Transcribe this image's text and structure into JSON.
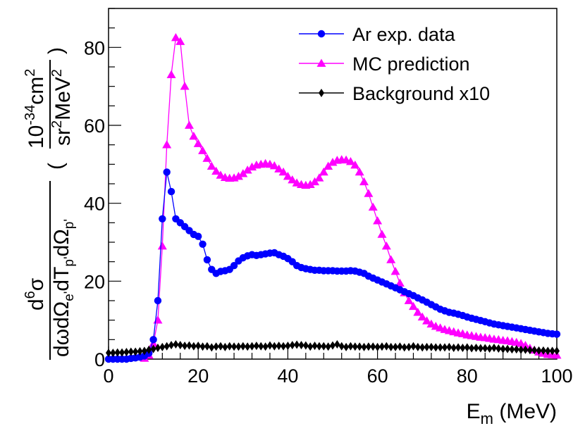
{
  "chart_data": {
    "type": "line",
    "title": "",
    "xlabel": {
      "main": "E",
      "sub": "m",
      "suffix": " (MeV)"
    },
    "ylabel": {
      "num_main": "d",
      "num_sup": "6",
      "num_sigma": "σ",
      "den_1": "dωdΩ",
      "den_sub_e": "e'",
      "den_2": "dT",
      "den_sub_p": "p'",
      "den_3": "dΩ",
      "den_sub_p2": "p'",
      "unit_ten": "10",
      "unit_exp": "-34",
      "unit_cm": "cm",
      "unit_cm_exp": "2",
      "unit_sr": "sr",
      "unit_sr_exp": "2",
      "unit_mev": "MeV",
      "unit_mev_exp": "2"
    },
    "xlim": [
      0,
      100
    ],
    "ylim": [
      0,
      90
    ],
    "x_ticks": [
      "0",
      "20",
      "40",
      "60",
      "80",
      "100"
    ],
    "y_ticks": [
      "0",
      "20",
      "40",
      "60",
      "80"
    ],
    "legend_position": "top-right",
    "series": [
      {
        "name": "Ar exp. data",
        "color": "#0000ff",
        "marker": "circle",
        "x": [
          0,
          1,
          2,
          3,
          4,
          5,
          6,
          7,
          8,
          9,
          10,
          11,
          12,
          13,
          14,
          15,
          16,
          17,
          18,
          19,
          20,
          21,
          22,
          23,
          24,
          25,
          26,
          27,
          28,
          29,
          30,
          31,
          32,
          33,
          34,
          35,
          36,
          37,
          38,
          39,
          40,
          41,
          42,
          43,
          44,
          45,
          46,
          47,
          48,
          49,
          50,
          51,
          52,
          53,
          54,
          55,
          56,
          57,
          58,
          59,
          60,
          61,
          62,
          63,
          64,
          65,
          66,
          67,
          68,
          69,
          70,
          71,
          72,
          73,
          74,
          75,
          76,
          77,
          78,
          79,
          80,
          81,
          82,
          83,
          84,
          85,
          86,
          87,
          88,
          89,
          90,
          91,
          92,
          93,
          94,
          95,
          96,
          97,
          98,
          99,
          100
        ],
        "y": [
          0,
          0,
          0,
          0,
          0,
          0.2,
          0.3,
          0.5,
          0.8,
          1.5,
          5,
          15,
          36,
          48,
          43,
          36,
          35,
          34,
          33,
          32,
          31.5,
          29.5,
          25.5,
          23,
          22,
          22.5,
          22.7,
          23,
          24,
          25.2,
          26,
          26.5,
          26.8,
          26.6,
          26.8,
          27,
          27.2,
          27.3,
          26.8,
          26.4,
          25.8,
          25,
          24,
          23.5,
          23.2,
          23,
          22.8,
          22.8,
          22.7,
          22.7,
          22.7,
          22.6,
          22.6,
          22.6,
          22.7,
          22.6,
          22.3,
          22,
          21.3,
          20.8,
          20.3,
          19.8,
          19.3,
          18.8,
          18.3,
          17.8,
          17.3,
          16.8,
          16.3,
          15.7,
          15.2,
          14.6,
          14,
          13.4,
          12.8,
          12.4,
          12,
          11.8,
          11.5,
          11.2,
          10.8,
          10.5,
          10.2,
          9.9,
          9.6,
          9.3,
          9,
          8.8,
          8.6,
          8.4,
          8.2,
          8,
          7.8,
          7.6,
          7.4,
          7.2,
          7,
          6.8,
          6.6,
          6.5,
          6.4
        ]
      },
      {
        "name": "MC prediction",
        "color": "#ff00ff",
        "marker": "triangle",
        "x": [
          8,
          9,
          10,
          11,
          12,
          13,
          14,
          15,
          16,
          17,
          18,
          19,
          20,
          21,
          22,
          23,
          24,
          25,
          26,
          27,
          28,
          29,
          30,
          31,
          32,
          33,
          34,
          35,
          36,
          37,
          38,
          39,
          40,
          41,
          42,
          43,
          44,
          45,
          46,
          47,
          48,
          49,
          50,
          51,
          52,
          53,
          54,
          55,
          56,
          57,
          58,
          59,
          60,
          61,
          62,
          63,
          64,
          65,
          66,
          67,
          68,
          69,
          70,
          71,
          72,
          73,
          74,
          75,
          76,
          77,
          78,
          79,
          80,
          81,
          82,
          83,
          84,
          85,
          86,
          87,
          88,
          89,
          90,
          91,
          92,
          93,
          94,
          95,
          96,
          97,
          98,
          99,
          100
        ],
        "y": [
          0.2,
          1,
          4,
          10,
          29,
          55,
          73,
          82.5,
          81.5,
          70,
          60,
          57.2,
          55.3,
          53.5,
          51.5,
          49.5,
          48.2,
          47.2,
          46.6,
          46.4,
          46.5,
          46.9,
          47.6,
          48.5,
          49.3,
          49.8,
          50,
          50.2,
          50,
          49.6,
          48.8,
          48,
          46.9,
          46,
          45.2,
          44.8,
          44.6,
          44.8,
          45.5,
          46.5,
          48,
          49.5,
          50.5,
          51,
          51.2,
          51.1,
          50.7,
          49.8,
          48,
          45.5,
          42.5,
          39,
          35.5,
          32,
          29,
          25.5,
          22.5,
          19.5,
          17,
          15,
          13.5,
          12,
          10.8,
          9.8,
          9,
          8.4,
          8,
          7.6,
          7.3,
          7,
          6.7,
          6.5,
          6.2,
          6,
          5.8,
          5.6,
          5.5,
          5.3,
          5.1,
          5,
          4.8,
          4.7,
          4.5,
          4.3,
          4,
          3.5,
          2.8,
          2.3,
          1.8,
          1.5,
          1.2,
          1.1,
          1
        ]
      },
      {
        "name": "Background x10",
        "color": "#000000",
        "marker": "diamond",
        "x": [
          0,
          1,
          2,
          3,
          4,
          5,
          6,
          7,
          8,
          9,
          10,
          11,
          12,
          13,
          14,
          15,
          16,
          17,
          18,
          19,
          20,
          21,
          22,
          23,
          24,
          25,
          26,
          27,
          28,
          29,
          30,
          31,
          32,
          33,
          34,
          35,
          36,
          37,
          38,
          39,
          40,
          41,
          42,
          43,
          44,
          45,
          46,
          47,
          48,
          49,
          50,
          51,
          52,
          53,
          54,
          55,
          56,
          57,
          58,
          59,
          60,
          61,
          62,
          63,
          64,
          65,
          66,
          67,
          68,
          69,
          70,
          71,
          72,
          73,
          74,
          75,
          76,
          77,
          78,
          79,
          80,
          81,
          82,
          83,
          84,
          85,
          86,
          87,
          88,
          89,
          90,
          91,
          92,
          93,
          94,
          95,
          96,
          97,
          98,
          99,
          100
        ],
        "y": [
          1.6,
          1.6,
          1.7,
          1.7,
          1.8,
          1.9,
          1.9,
          2,
          2.1,
          2.4,
          2.6,
          2.9,
          3.1,
          3.3,
          3.6,
          3.8,
          3.6,
          3.4,
          3.5,
          3.3,
          3.4,
          3.2,
          3.3,
          3,
          3.2,
          3.3,
          3.1,
          3.3,
          3.2,
          3.2,
          3.3,
          3.2,
          3.3,
          3.4,
          3.3,
          3.2,
          3.5,
          3.3,
          3.4,
          3.3,
          3.4,
          3.6,
          3.7,
          3.6,
          3.5,
          3.2,
          3.4,
          3.3,
          3.3,
          3.2,
          3.5,
          3.8,
          3.3,
          3.1,
          3.3,
          3.2,
          3.2,
          3.1,
          3.2,
          3.2,
          3.1,
          3.2,
          3.3,
          3.1,
          3.1,
          3.2,
          3,
          3.1,
          3.3,
          3.1,
          3,
          3.1,
          3.1,
          3,
          3,
          3,
          3.1,
          2.9,
          3,
          2.9,
          3,
          2.8,
          2.9,
          2.8,
          2.8,
          2.7,
          2.9,
          2.7,
          2.6,
          2.6,
          2.5,
          2.5,
          2.4,
          2.4,
          2.3,
          2.3,
          2.2,
          2.2,
          2.1,
          2.1,
          2.1
        ]
      }
    ]
  }
}
